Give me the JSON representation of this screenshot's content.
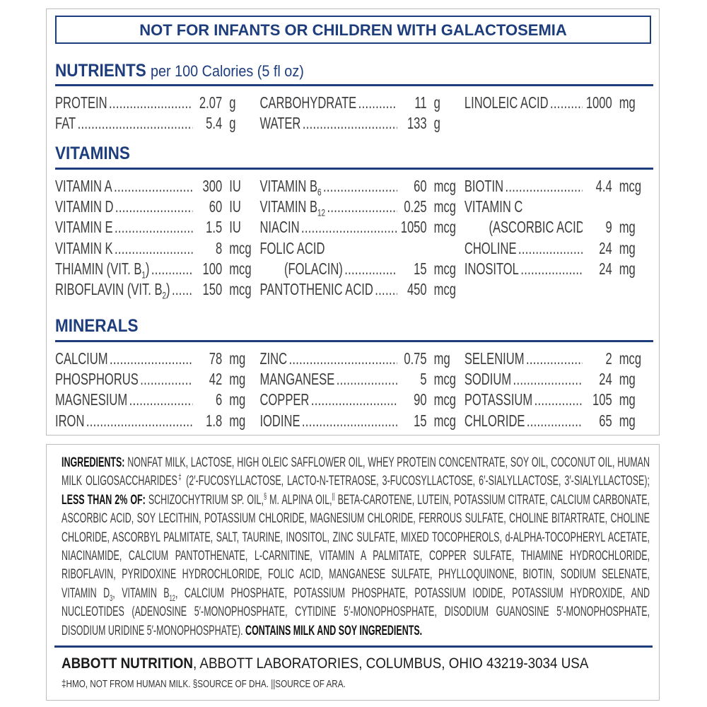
{
  "warning": "NOT FOR INFANTS OR CHILDREN WITH GALACTOSEMIA",
  "nutrients": {
    "heading": "NUTRIENTS",
    "subheading": "per 100 Calories (5 fl oz)",
    "columns": [
      [
        {
          "name": "PROTEIN",
          "value": "2.07",
          "unit": "g"
        },
        {
          "name": "FAT",
          "value": "5.4",
          "unit": "g"
        }
      ],
      [
        {
          "name": "CARBOHYDRATE",
          "value": "11",
          "unit": "g"
        },
        {
          "name": "WATER",
          "value": "133",
          "unit": "g"
        }
      ],
      [
        {
          "name": "LINOLEIC ACID",
          "value": "1000",
          "unit": "mg"
        }
      ]
    ]
  },
  "vitamins": {
    "heading": "VITAMINS",
    "columns": [
      [
        {
          "name": "VITAMIN A",
          "value": "300",
          "unit": "IU"
        },
        {
          "name": "VITAMIN D",
          "value": "60",
          "unit": "IU"
        },
        {
          "name": "VITAMIN E",
          "value": "1.5",
          "unit": "IU"
        },
        {
          "name": "VITAMIN K",
          "value": "8",
          "unit": "mcg"
        },
        {
          "name": "THIAMIN (VIT. B",
          "sub": "1",
          "post": ")",
          "value": "100",
          "unit": "mcg"
        },
        {
          "name": "RIBOFLAVIN (VIT. B",
          "sub": "2",
          "post": ")",
          "value": "150",
          "unit": "mcg"
        }
      ],
      [
        {
          "name": "VITAMIN B",
          "sub": "6",
          "value": "60",
          "unit": "mcg"
        },
        {
          "name": "VITAMIN B",
          "sub": "12",
          "value": "0.25",
          "unit": "mcg"
        },
        {
          "name": "NIACIN",
          "value": "1050",
          "unit": "mcg"
        },
        {
          "name": "FOLIC ACID",
          "nolead": true
        },
        {
          "name": "(FOLACIN)",
          "indent": true,
          "value": "15",
          "unit": "mcg"
        },
        {
          "name": "PANTOTHENIC ACID",
          "value": "450",
          "unit": "mcg"
        }
      ],
      [
        {
          "name": "BIOTIN",
          "value": "4.4",
          "unit": "mcg"
        },
        {
          "name": "VITAMIN C",
          "nolead": true
        },
        {
          "name": "(ASCORBIC ACID)",
          "indent": true,
          "value": "9",
          "unit": "mg"
        },
        {
          "name": "CHOLINE",
          "value": "24",
          "unit": "mg"
        },
        {
          "name": "INOSITOL",
          "value": "24",
          "unit": "mg"
        }
      ]
    ]
  },
  "minerals": {
    "heading": "MINERALS",
    "columns": [
      [
        {
          "name": "CALCIUM",
          "value": "78",
          "unit": "mg"
        },
        {
          "name": "PHOSPHORUS",
          "value": "42",
          "unit": "mg"
        },
        {
          "name": "MAGNESIUM",
          "value": "6",
          "unit": "mg"
        },
        {
          "name": "IRON",
          "value": "1.8",
          "unit": "mg"
        }
      ],
      [
        {
          "name": "ZINC",
          "value": "0.75",
          "unit": "mg"
        },
        {
          "name": "MANGANESE",
          "value": "5",
          "unit": "mcg"
        },
        {
          "name": "COPPER",
          "value": "90",
          "unit": "mcg"
        },
        {
          "name": "IODINE",
          "value": "15",
          "unit": "mcg"
        }
      ],
      [
        {
          "name": "SELENIUM",
          "value": "2",
          "unit": "mcg"
        },
        {
          "name": "SODIUM",
          "value": "24",
          "unit": "mg"
        },
        {
          "name": "POTASSIUM",
          "value": "105",
          "unit": "mg"
        },
        {
          "name": "CHLORIDE",
          "value": "65",
          "unit": "mg"
        }
      ]
    ]
  },
  "ingredients": [
    {
      "t": "INGREDIENTS:",
      "b": true
    },
    {
      "t": " NONFAT MILK, LACTOSE, HIGH OLEIC SAFFLOWER OIL, WHEY PROTEIN CONCENTRATE, SOY OIL, COCONUT OIL, HUMAN MILK OLIGOSACCHARIDES"
    },
    {
      "t": "‡",
      "sup": true
    },
    {
      "t": " (2′-FUCOSYLLACTOSE, LACTO-N-TETRAOSE, 3-FUCOSYLLACTOSE, 6′-SIALYLLACTOSE, 3′-SIALYLLACTOSE); "
    },
    {
      "t": "LESS THAN 2% OF:",
      "b": true
    },
    {
      "t": " SCHIZOCHYTRIUM SP. OIL,"
    },
    {
      "t": "§",
      "sup": true
    },
    {
      "t": " M. ALPINA OIL,"
    },
    {
      "t": "||",
      "sup": true
    },
    {
      "t": " BETA-CAROTENE, LUTEIN, POTASSIUM CITRATE, CALCIUM CARBONATE, ASCORBIC ACID, SOY LECITHIN, POTASSIUM CHLORIDE, MAGNESIUM CHLORIDE, FERROUS SULFATE, CHOLINE BITARTRATE, CHOLINE CHLORIDE, ASCORBYL PALMITATE, SALT, TAURINE, INOSITOL, ZINC SULFATE, MIXED TOCOPHEROLS, d-ALPHA-TOCOPHERYL ACETATE, NIACINAMIDE, CALCIUM PANTOTHENATE, L-CARNITINE, VITAMIN A PALMITATE, COPPER SULFATE, THIAMINE HYDROCHLORIDE, RIBOFLAVIN, PYRIDOXINE HYDROCHLORIDE, FOLIC ACID, MANGANESE SULFATE, PHYLLOQUINONE, BIOTIN, SODIUM SELENATE, VITAMIN D"
    },
    {
      "t": "3",
      "sub": true
    },
    {
      "t": ", VITAMIN B"
    },
    {
      "t": "12",
      "sub": true
    },
    {
      "t": ", CALCIUM PHOSPHATE, POTASSIUM PHOSPHATE, POTASSIUM IODIDE, POTASSIUM HYDROXIDE, AND NUCLEOTIDES (ADENOSINE 5′-MONOPHOSPHATE, CYTIDINE 5′-MONOPHOSPHATE, DISODIUM GUANOSINE 5′-MONOPHOSPHATE, DISODIUM URIDINE 5′-MONOPHOSPHATE). "
    },
    {
      "t": "CONTAINS MILK AND SOY INGREDIENTS.",
      "b": true
    }
  ],
  "manufacturer": {
    "bold": "ABBOTT NUTRITION",
    "rest": ", ABBOTT LABORATORIES, COLUMBUS, OHIO 43219-3034 USA"
  },
  "footnote": "‡HMO, NOT FROM HUMAN MILK. §SOURCE OF DHA. ||SOURCE OF ARA.",
  "colors": {
    "accent": "#1d3d7c",
    "text": "#3c3c3c"
  }
}
